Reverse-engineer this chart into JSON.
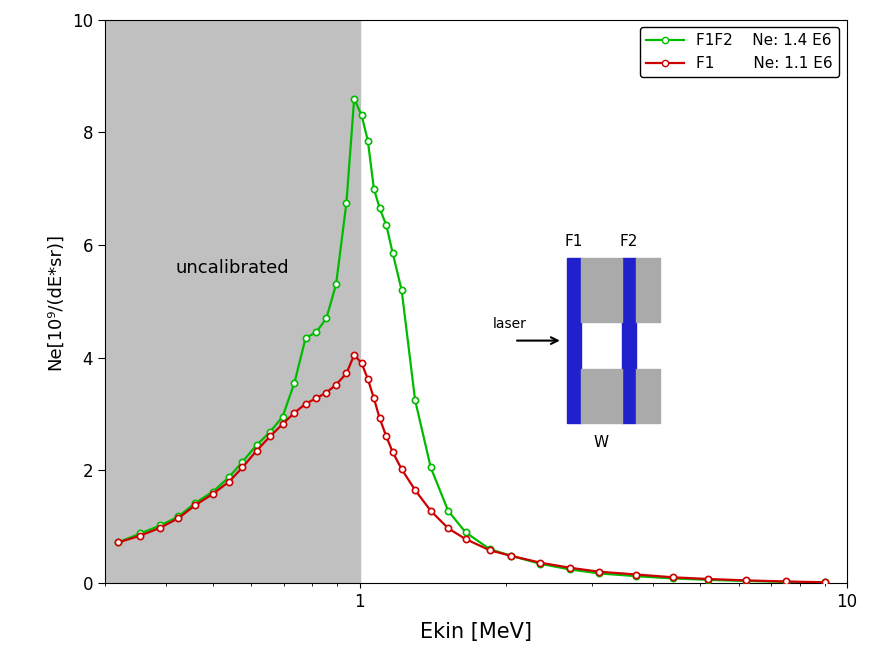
{
  "xlabel": "Ekin [MeV]",
  "ylabel": "Ne[10⁹/(dE*sr)]",
  "xlim_log": [
    0.3,
    10
  ],
  "ylim": [
    0,
    10
  ],
  "uncalibrated_x_end": 1.0,
  "gray_region_color": "#c0c0c0",
  "uncalibrated_label": "uncalibrated",
  "legend_F1F2_label": "F1F2    Ne: 1.4 E6",
  "legend_F1_label": "F1        Ne: 1.1 E6",
  "F1F2_color": "#00bb00",
  "F1_color": "#cc0000",
  "F1F2_x": [
    0.32,
    0.355,
    0.39,
    0.425,
    0.46,
    0.5,
    0.54,
    0.575,
    0.615,
    0.655,
    0.695,
    0.735,
    0.775,
    0.815,
    0.855,
    0.895,
    0.94,
    0.975,
    1.01,
    1.04,
    1.07,
    1.1,
    1.135,
    1.17,
    1.22,
    1.3,
    1.4,
    1.52,
    1.65,
    1.85,
    2.05,
    2.35,
    2.7,
    3.1,
    3.7,
    4.4,
    5.2,
    6.2,
    7.5,
    9.0
  ],
  "F1F2_y": [
    0.72,
    0.88,
    1.02,
    1.18,
    1.42,
    1.62,
    1.88,
    2.15,
    2.45,
    2.68,
    2.95,
    3.55,
    4.35,
    4.45,
    4.7,
    5.3,
    6.75,
    8.6,
    8.3,
    7.85,
    7.0,
    6.65,
    6.35,
    5.85,
    5.2,
    3.25,
    2.05,
    1.28,
    0.9,
    0.6,
    0.48,
    0.34,
    0.24,
    0.17,
    0.12,
    0.08,
    0.055,
    0.035,
    0.018,
    0.008
  ],
  "F1_x": [
    0.32,
    0.355,
    0.39,
    0.425,
    0.46,
    0.5,
    0.54,
    0.575,
    0.615,
    0.655,
    0.695,
    0.735,
    0.775,
    0.815,
    0.855,
    0.895,
    0.94,
    0.975,
    1.01,
    1.04,
    1.07,
    1.1,
    1.135,
    1.17,
    1.22,
    1.3,
    1.4,
    1.52,
    1.65,
    1.85,
    2.05,
    2.35,
    2.7,
    3.1,
    3.7,
    4.4,
    5.2,
    6.2,
    7.5,
    9.0
  ],
  "F1_y": [
    0.72,
    0.84,
    0.98,
    1.15,
    1.38,
    1.58,
    1.8,
    2.05,
    2.35,
    2.6,
    2.82,
    3.02,
    3.18,
    3.28,
    3.38,
    3.52,
    3.72,
    4.05,
    3.9,
    3.62,
    3.28,
    2.92,
    2.6,
    2.32,
    2.02,
    1.65,
    1.28,
    0.97,
    0.78,
    0.58,
    0.48,
    0.36,
    0.27,
    0.2,
    0.15,
    0.1,
    0.07,
    0.046,
    0.026,
    0.012
  ],
  "background_color": "#ffffff",
  "inset_gray": "#aaaaaa",
  "inset_blue": "#2020cc",
  "inset_white": "#ffffff"
}
